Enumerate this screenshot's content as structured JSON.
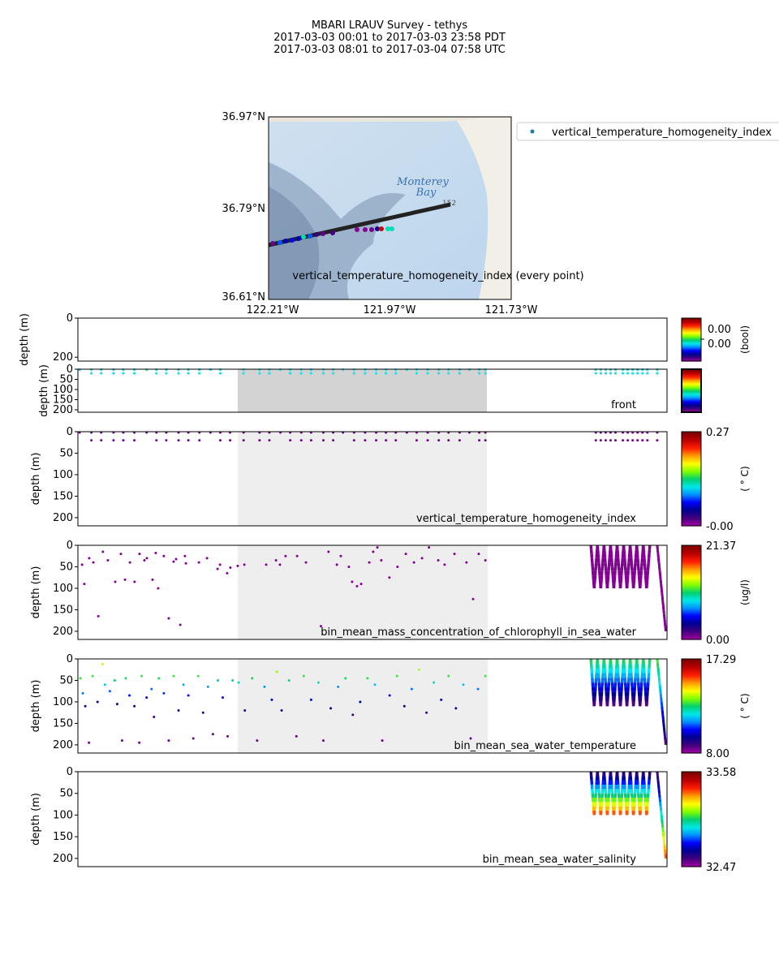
{
  "header": {
    "title": "MBARI LRAUV Survey - tethys",
    "line2": "2017-03-03 00:01  to  2017-03-03 23:58 PDT",
    "line3": "2017-03-03 08:01  to  2017-03-04 07:58 UTC"
  },
  "map": {
    "lat_ticks": [
      "36.97°N",
      "36.79°N",
      "36.61°N"
    ],
    "lon_ticks": [
      "122.21°W",
      "121.97°W",
      "121.73°W"
    ],
    "place_label_1": "Monterey",
    "place_label_2": "Bay",
    "road_label": "152",
    "legend_label": "vertical_temperature_homogeneity_index",
    "caption": "vertical_temperature_homogeneity_index (every point)"
  },
  "colormap": [
    "#9e009e",
    "#40007f",
    "#000090",
    "#0000ff",
    "#0090ff",
    "#00e8e8",
    "#00d070",
    "#80ff00",
    "#ffff00",
    "#ffa000",
    "#ff2000",
    "#c00000",
    "#800000"
  ],
  "chart_data": [
    {
      "type": "scatter",
      "name": "bool-panel",
      "ylabel": "depth (m)",
      "ylim": [
        0,
        220
      ],
      "yticks": [
        0,
        200
      ],
      "cbar": {
        "ticks": [
          "0.00",
          "0.00"
        ],
        "unit": "(bool)"
      },
      "points": []
    },
    {
      "type": "scatter",
      "name": "front",
      "ylabel": "depth (m)",
      "ylim": [
        0,
        212
      ],
      "yticks": [
        0,
        50,
        100,
        150,
        200
      ],
      "title": "front",
      "shade": [
        6.51,
        16.66
      ],
      "shade_color": "#d3d3d3",
      "cbar": {
        "ticks": [],
        "unit": ""
      },
      "rows": [
        {
          "depth": 2,
          "value": 0.45
        },
        {
          "depth": 20,
          "value": 0.45
        }
      ]
    },
    {
      "type": "scatter",
      "name": "vertical_temperature_homogeneity_index",
      "ylabel": "depth (m)",
      "ylim": [
        0,
        219
      ],
      "yticks": [
        0,
        50,
        100,
        150,
        200
      ],
      "title": "vertical_temperature_homogeneity_index",
      "shade": [
        6.51,
        16.66
      ],
      "shade_color": "#eeeeee",
      "cbar": {
        "ticks": [
          "0.27",
          "-0.00"
        ],
        "unit": "( ° C)",
        "min": 0,
        "max": 0.27
      },
      "rows": [
        {
          "depth": 2,
          "value": 0.01
        },
        {
          "depth": 20,
          "value": 0.01
        }
      ]
    },
    {
      "type": "scatter",
      "name": "bin_mean_mass_concentration_of_chlorophyll_in_sea_water",
      "ylabel": "depth (m)",
      "ylim": [
        0,
        219
      ],
      "yticks": [
        0,
        50,
        100,
        150,
        200
      ],
      "title": "bin_mean_mass_concentration_of_chlorophyll_in_sea_water",
      "shade": [
        6.51,
        16.7
      ],
      "shade_color": "#eeeeee",
      "cbar": {
        "ticks": [
          "21.37",
          "0.00"
        ],
        "unit": "(ug/l)",
        "min": 0,
        "max": 21.37
      },
      "points": [
        [
          0.17,
          45,
          0.5
        ],
        [
          0.26,
          90,
          0.5
        ],
        [
          0.46,
          30,
          0.5
        ],
        [
          0.63,
          40,
          0.5
        ],
        [
          0.83,
          165,
          0.5
        ],
        [
          1.02,
          15,
          0.5
        ],
        [
          1.22,
          35,
          0.5
        ],
        [
          1.52,
          85,
          0.5
        ],
        [
          1.75,
          20,
          0.5
        ],
        [
          1.92,
          80,
          0.5
        ],
        [
          2.12,
          40,
          0.5
        ],
        [
          2.31,
          85,
          0.5
        ],
        [
          2.51,
          20,
          0.5
        ],
        [
          2.71,
          35,
          0.5
        ],
        [
          2.81,
          30,
          0.5
        ],
        [
          3.04,
          80,
          0.5
        ],
        [
          3.17,
          18,
          0.5
        ],
        [
          3.27,
          100,
          0.5
        ],
        [
          3.5,
          25,
          0.5
        ],
        [
          3.7,
          170,
          0.5
        ],
        [
          3.9,
          38,
          0.5
        ],
        [
          4.0,
          32,
          0.5
        ],
        [
          4.17,
          185,
          0.5
        ],
        [
          4.36,
          25,
          0.5
        ],
        [
          4.4,
          42,
          0.5
        ],
        [
          4.93,
          40,
          0.5
        ],
        [
          5.26,
          30,
          0.5
        ],
        [
          5.69,
          55,
          0.5
        ],
        [
          5.79,
          45,
          0.5
        ],
        [
          6.08,
          65,
          0.5
        ],
        [
          6.21,
          52,
          0.5
        ],
        [
          6.51,
          48,
          0.5
        ],
        [
          6.78,
          45,
          0.5
        ],
        [
          7.67,
          45,
          0.5
        ],
        [
          8.07,
          35,
          0.5
        ],
        [
          8.23,
          45,
          0.5
        ],
        [
          8.46,
          25,
          0.5
        ],
        [
          8.93,
          25,
          0.5
        ],
        [
          9.29,
          40,
          0.5
        ],
        [
          10.21,
          15,
          0.5
        ],
        [
          10.55,
          45,
          0.5
        ],
        [
          10.71,
          25,
          0.5
        ],
        [
          11.04,
          50,
          0.5
        ],
        [
          11.17,
          85,
          0.5
        ],
        [
          11.37,
          95,
          0.5
        ],
        [
          11.54,
          90,
          0.5
        ],
        [
          11.87,
          40,
          0.5
        ],
        [
          12.03,
          15,
          0.5
        ],
        [
          12.36,
          35,
          0.5
        ],
        [
          12.69,
          75,
          0.5
        ],
        [
          13.02,
          50,
          0.5
        ],
        [
          13.36,
          20,
          0.5
        ],
        [
          13.69,
          40,
          0.5
        ],
        [
          14.02,
          30,
          0.5
        ],
        [
          14.68,
          35,
          0.5
        ],
        [
          14.94,
          45,
          0.5
        ],
        [
          15.34,
          20,
          0.5
        ],
        [
          15.83,
          40,
          0.5
        ],
        [
          16.1,
          125,
          0.5
        ],
        [
          16.33,
          20,
          0.5
        ],
        [
          16.6,
          35,
          0.5
        ],
        [
          9.9,
          188,
          0.5
        ],
        [
          12.2,
          5,
          0.5
        ],
        [
          14.3,
          5,
          0.5
        ]
      ],
      "yoyo": {
        "start_h": 20.9,
        "end_h": 23.3,
        "cycles": 9,
        "max_depth": 100,
        "surface_value": 0.5,
        "bottom_value": 0.5,
        "final_dive": {
          "start_h": 23.6,
          "end_h": 23.95,
          "max_depth": 200
        }
      }
    },
    {
      "type": "scatter",
      "name": "bin_mean_sea_water_temperature",
      "ylabel": "depth (m)",
      "ylim": [
        0,
        219
      ],
      "yticks": [
        0,
        50,
        100,
        150,
        200
      ],
      "title": "bin_mean_sea_water_temperature",
      "shade": [
        6.51,
        16.7
      ],
      "shade_color": "#eeeeee",
      "cbar": {
        "ticks": [
          "17.29",
          "8.00"
        ],
        "unit": "( ° C)",
        "min": 8.0,
        "max": 17.29
      },
      "points": [
        [
          0.1,
          45,
          13
        ],
        [
          0.2,
          80,
          11
        ],
        [
          0.3,
          110,
          9.3
        ],
        [
          0.45,
          195,
          8.4
        ],
        [
          0.6,
          40,
          13
        ],
        [
          0.8,
          100,
          9.6
        ],
        [
          1.0,
          12,
          13.8
        ],
        [
          1.1,
          60,
          11.6
        ],
        [
          1.3,
          75,
          10.8
        ],
        [
          1.5,
          50,
          12.6
        ],
        [
          1.6,
          105,
          9.4
        ],
        [
          1.8,
          190,
          8.4
        ],
        [
          1.95,
          45,
          12.8
        ],
        [
          2.1,
          85,
          10.4
        ],
        [
          2.3,
          110,
          9.3
        ],
        [
          2.5,
          195,
          8.4
        ],
        [
          2.6,
          40,
          13
        ],
        [
          2.8,
          90,
          10.2
        ],
        [
          3.0,
          70,
          10.9
        ],
        [
          3.1,
          135,
          8.9
        ],
        [
          3.3,
          45,
          12.8
        ],
        [
          3.5,
          80,
          10.6
        ],
        [
          3.7,
          190,
          8.4
        ],
        [
          3.9,
          40,
          13
        ],
        [
          4.1,
          120,
          9.1
        ],
        [
          4.3,
          60,
          11.4
        ],
        [
          4.5,
          85,
          10.4
        ],
        [
          4.7,
          185,
          8.4
        ],
        [
          4.9,
          40,
          13
        ],
        [
          5.1,
          125,
          9
        ],
        [
          5.3,
          65,
          11.2
        ],
        [
          5.5,
          175,
          8.5
        ],
        [
          5.7,
          50,
          12.5
        ],
        [
          5.9,
          90,
          10.2
        ],
        [
          6.1,
          180,
          8.4
        ],
        [
          6.3,
          50,
          12.5
        ],
        [
          6.55,
          55,
          12.2
        ],
        [
          6.8,
          120,
          9.1
        ],
        [
          7.1,
          45,
          12.8
        ],
        [
          7.3,
          190,
          8.4
        ],
        [
          7.6,
          65,
          11.2
        ],
        [
          7.9,
          95,
          10
        ],
        [
          8.1,
          30,
          13.5
        ],
        [
          8.3,
          120,
          9.1
        ],
        [
          8.6,
          50,
          12.4
        ],
        [
          8.9,
          180,
          8.5
        ],
        [
          9.2,
          40,
          13
        ],
        [
          9.5,
          95,
          10
        ],
        [
          9.8,
          55,
          12.1
        ],
        [
          10.0,
          190,
          8.4
        ],
        [
          10.3,
          115,
          9.2
        ],
        [
          10.6,
          65,
          11.2
        ],
        [
          10.9,
          45,
          12.8
        ],
        [
          11.2,
          130,
          8.9
        ],
        [
          11.5,
          100,
          9.6
        ],
        [
          11.8,
          45,
          12.9
        ],
        [
          12.1,
          60,
          11.6
        ],
        [
          12.4,
          190,
          8.4
        ],
        [
          12.7,
          85,
          10.4
        ],
        [
          13.0,
          40,
          13
        ],
        [
          13.3,
          110,
          9.3
        ],
        [
          13.6,
          70,
          11
        ],
        [
          13.9,
          25,
          13.6
        ],
        [
          14.2,
          125,
          9
        ],
        [
          14.5,
          55,
          12.1
        ],
        [
          14.8,
          95,
          10
        ],
        [
          15.1,
          40,
          13
        ],
        [
          15.4,
          115,
          9.2
        ],
        [
          15.7,
          60,
          11.6
        ],
        [
          16.0,
          185,
          8.4
        ],
        [
          16.3,
          70,
          11
        ],
        [
          16.6,
          40,
          13
        ]
      ],
      "yoyo": {
        "start_h": 20.9,
        "end_h": 23.3,
        "cycles": 9,
        "max_depth": 110,
        "surface_value": 13.0,
        "bottom_value": 8.4,
        "final_dive": {
          "start_h": 23.6,
          "end_h": 23.95,
          "max_depth": 200
        }
      }
    },
    {
      "type": "scatter",
      "name": "bin_mean_sea_water_salinity",
      "ylabel": "depth (m)",
      "ylim": [
        0,
        219
      ],
      "yticks": [
        0,
        50,
        100,
        150,
        200
      ],
      "title": "bin_mean_sea_water_salinity",
      "cbar": {
        "ticks": [
          "33.58",
          "32.47"
        ],
        "unit": "",
        "min": 32.47,
        "max": 33.58
      },
      "points": [],
      "yoyo": {
        "start_h": 20.9,
        "end_h": 23.3,
        "cycles": 9,
        "max_depth": 100,
        "surface_value": 32.55,
        "bottom_value": 33.4,
        "final_dive": {
          "start_h": 23.6,
          "end_h": 23.95,
          "max_depth": 200
        }
      }
    }
  ],
  "sample_hours": [
    0.07,
    0.55,
    0.95,
    1.45,
    1.85,
    2.3,
    2.8,
    3.2,
    3.6,
    4.1,
    4.5,
    4.95,
    5.4,
    5.8,
    6.2,
    6.75,
    7.4,
    7.8,
    8.25,
    8.65,
    9.1,
    9.5,
    10.0,
    10.4,
    10.8,
    11.25,
    11.7,
    12.15,
    12.55,
    12.95,
    13.4,
    13.8,
    14.25,
    14.7,
    15.1,
    15.55,
    15.95,
    16.35,
    16.6,
    21.1,
    21.3,
    21.5,
    21.7,
    21.9,
    22.2,
    22.4,
    22.6,
    22.8,
    23.0,
    23.2,
    23.6
  ]
}
